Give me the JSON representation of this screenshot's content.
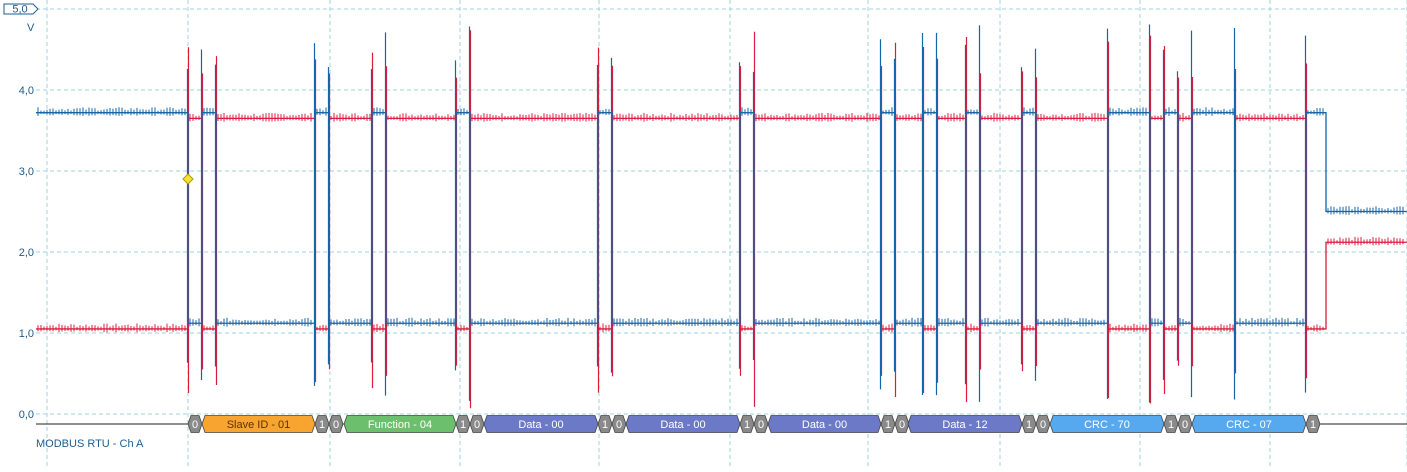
{
  "chart_data": {
    "type": "line",
    "y_unit": "V",
    "ylim": [
      0,
      5
    ],
    "y_ticks": [
      "0,0",
      "1,0",
      "2,0",
      "3,0",
      "4,0"
    ],
    "range_label": "5,0",
    "grid": true,
    "decoder_label": "MODBUS RTU - Ch A",
    "series": [
      {
        "color": "#1565a8",
        "description_levels": {
          "high_v": 3.72,
          "low_v": 1.12,
          "idle_end_v": 2.5
        },
        "edges_x": [
          188,
          202,
          216,
          315,
          329,
          372,
          386,
          456,
          470,
          598,
          612,
          740,
          754,
          881,
          895,
          923,
          937,
          966,
          980,
          1022,
          1036,
          1108,
          1150,
          1164,
          1178,
          1192,
          1235,
          1306,
          1326
        ]
      },
      {
        "color": "#dc1c3c",
        "description_levels": {
          "high_v": 3.65,
          "low_v": 1.05,
          "idle_end_v": 2.12
        }
      }
    ],
    "frames": [
      {
        "label": "0",
        "kind": "bit"
      },
      {
        "label": "Slave ID - 01",
        "kind": "slave"
      },
      {
        "label": "1",
        "kind": "bit"
      },
      {
        "label": "0",
        "kind": "bit"
      },
      {
        "label": "Function - 04",
        "kind": "function"
      },
      {
        "label": "1",
        "kind": "bit"
      },
      {
        "label": "0",
        "kind": "bit"
      },
      {
        "label": "Data - 00",
        "kind": "data"
      },
      {
        "label": "1",
        "kind": "bit"
      },
      {
        "label": "0",
        "kind": "bit"
      },
      {
        "label": "Data - 00",
        "kind": "data"
      },
      {
        "label": "1",
        "kind": "bit"
      },
      {
        "label": "0",
        "kind": "bit"
      },
      {
        "label": "Data - 00",
        "kind": "data"
      },
      {
        "label": "1",
        "kind": "bit"
      },
      {
        "label": "0",
        "kind": "bit"
      },
      {
        "label": "Data - 12",
        "kind": "data"
      },
      {
        "label": "1",
        "kind": "bit"
      },
      {
        "label": "0",
        "kind": "bit"
      },
      {
        "label": "CRC - 70",
        "kind": "crc"
      },
      {
        "label": "1",
        "kind": "bit"
      },
      {
        "label": "0",
        "kind": "bit"
      },
      {
        "label": "CRC - 07",
        "kind": "crc"
      },
      {
        "label": "1",
        "kind": "bit"
      }
    ],
    "colors": {
      "slave": "#f7a430",
      "function": "#6cbf6c",
      "data": "#6b79c6",
      "crc": "#56a8ef",
      "bit": "#8a8a8a",
      "grid": "#9fd3dd",
      "axis_text": "#1e5c8c"
    }
  }
}
